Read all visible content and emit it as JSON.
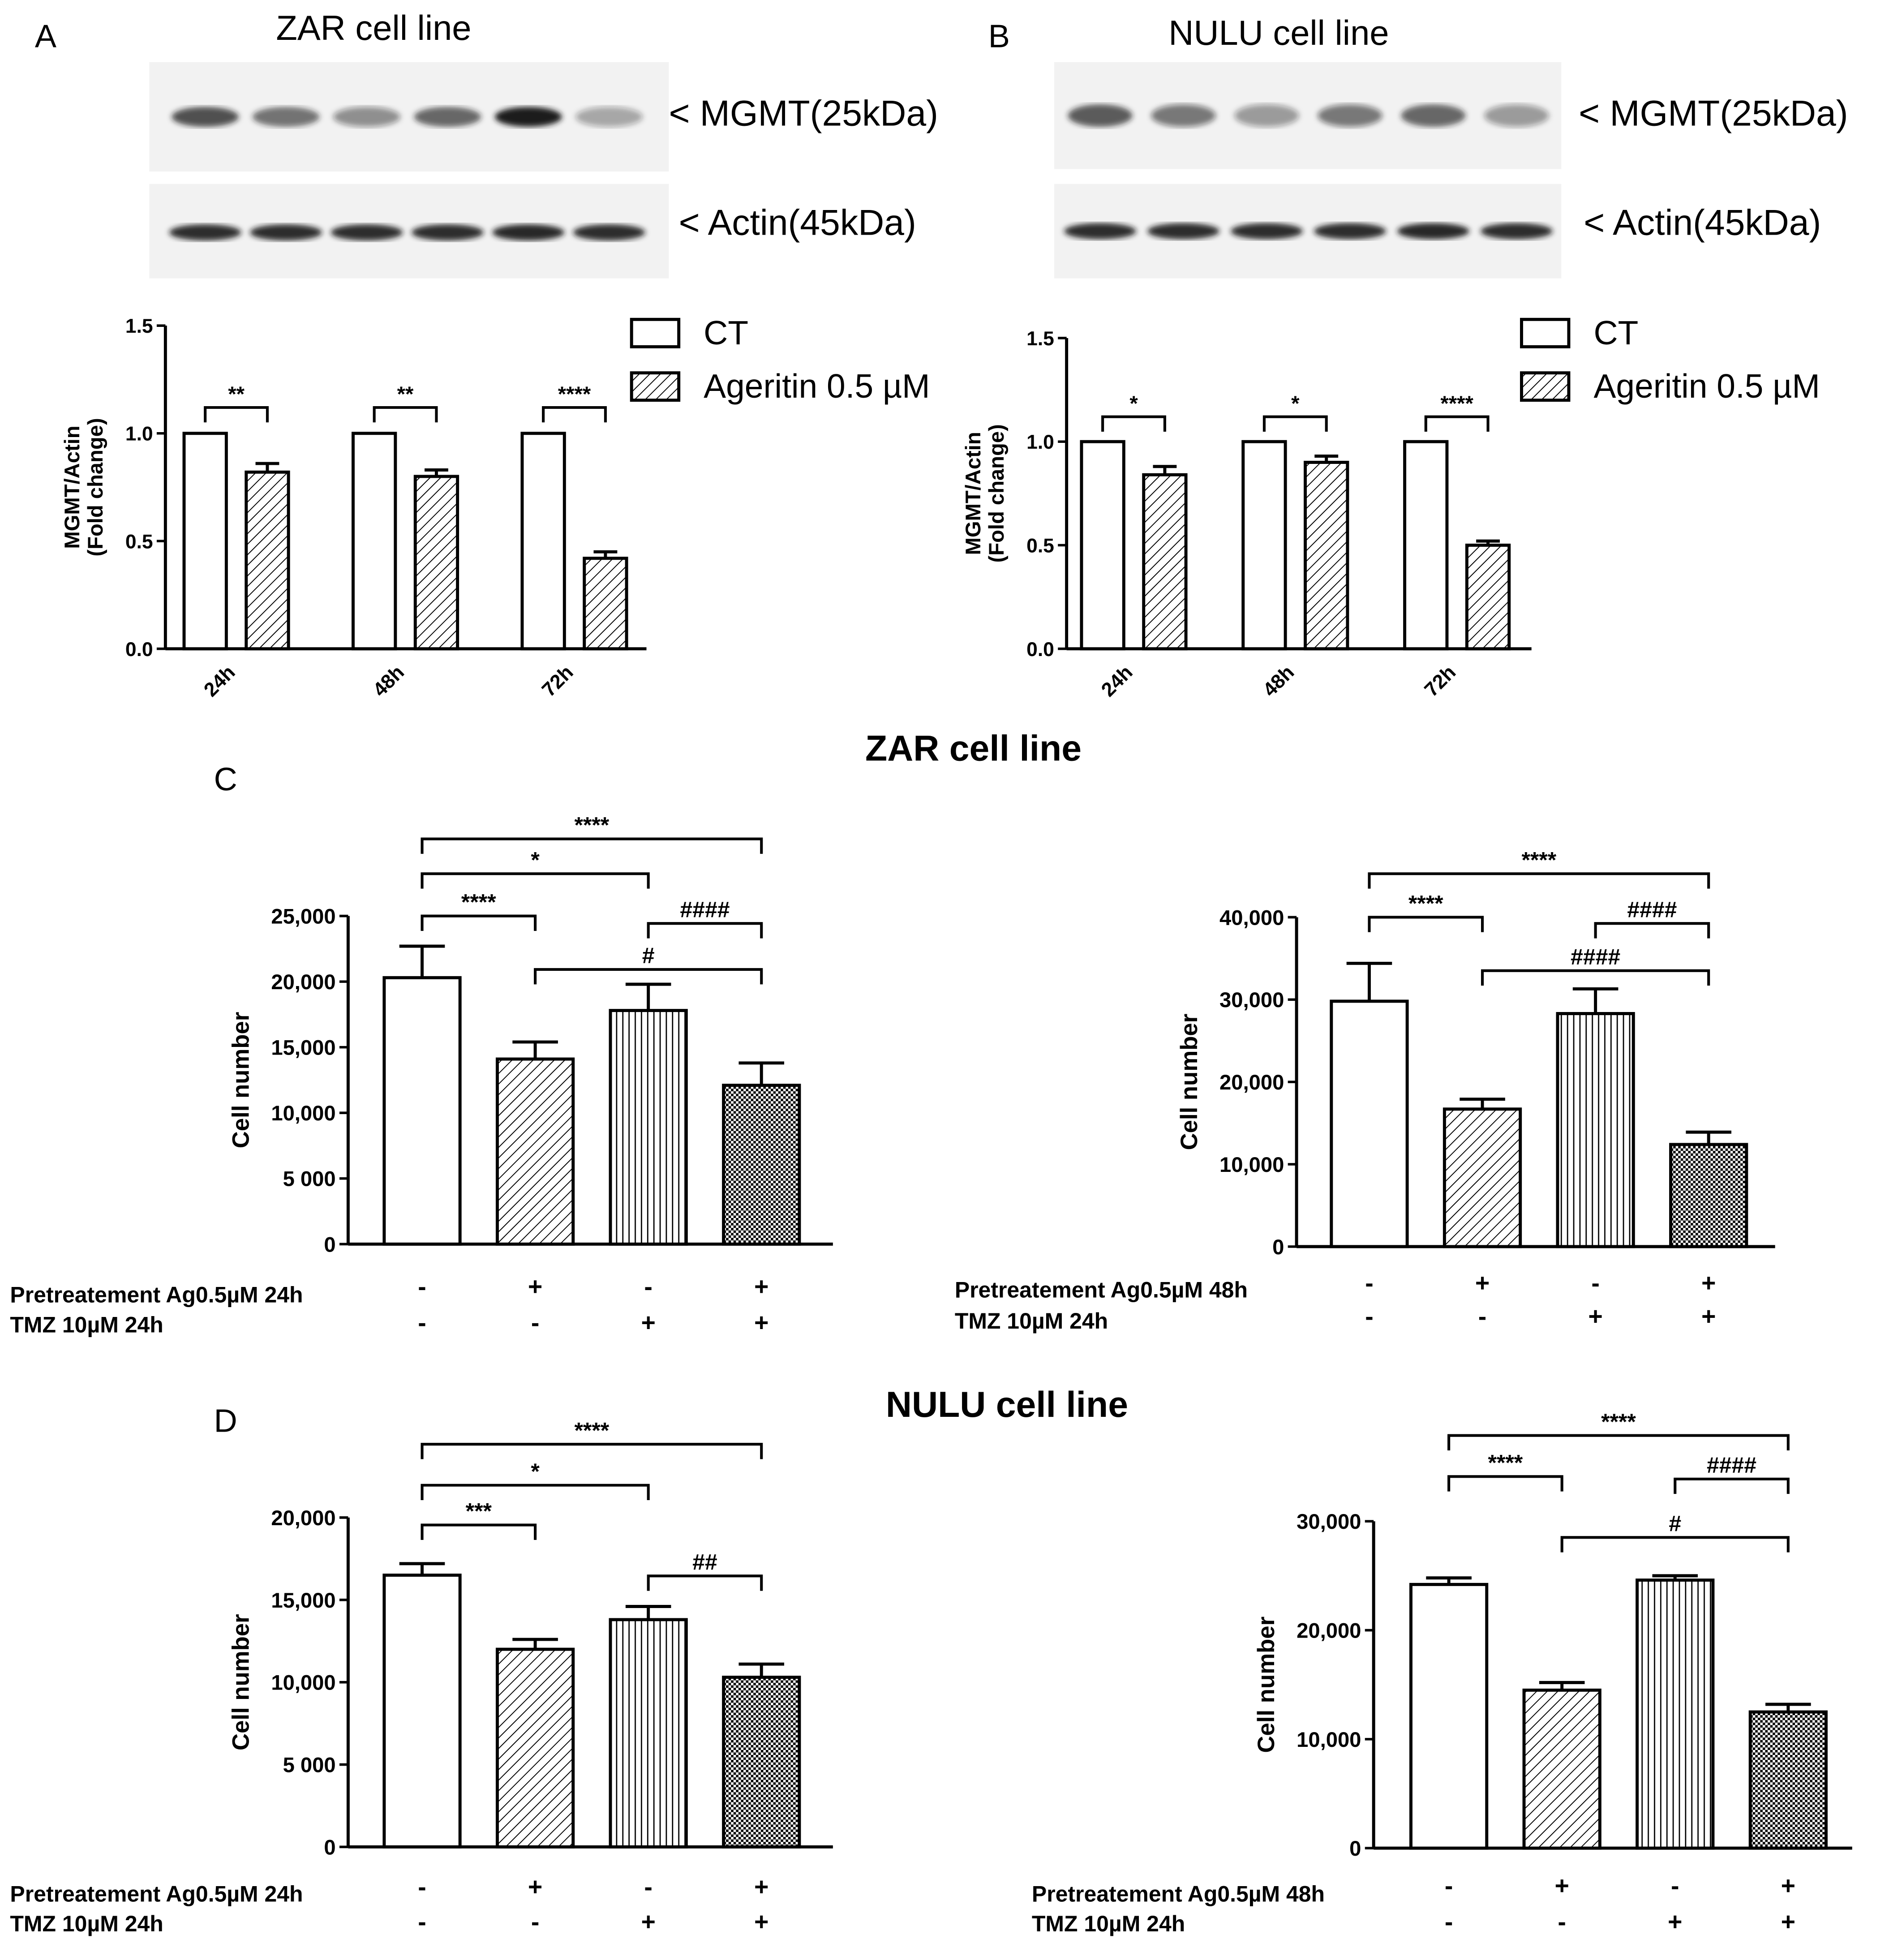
{
  "colors": {
    "ink": "#000000",
    "bar_fill": "#ffffff",
    "blot_bg": "#f2f2f2",
    "band": "#1a1a1a"
  },
  "panels": {
    "A": {
      "letter": "A",
      "title": "ZAR cell line"
    },
    "B": {
      "letter": "B",
      "title": "NULU cell line"
    },
    "C": {
      "letter": "C",
      "title": "ZAR cell line"
    },
    "D": {
      "letter": "D",
      "title": "NULU cell line"
    }
  },
  "blot": {
    "A": {
      "mgmt_label": "< MGMT(25kDa)",
      "actin_label": "< Actin(45kDa)",
      "mgmt_intensity": [
        0.75,
        0.6,
        0.45,
        0.65,
        1.0,
        0.35
      ],
      "actin_intensity": [
        0.9,
        0.9,
        0.9,
        0.9,
        0.95,
        0.9
      ]
    },
    "B": {
      "mgmt_label": "< MGMT(25kDa)",
      "actin_label": "< Actin(45kDa)",
      "mgmt_intensity": [
        0.7,
        0.55,
        0.4,
        0.55,
        0.65,
        0.4
      ],
      "actin_intensity": [
        0.9,
        0.9,
        0.9,
        0.9,
        0.95,
        0.9
      ]
    }
  },
  "legend": {
    "ct": "CT",
    "ageritin": "Ageritin 0.5 µM"
  },
  "row_labels": {
    "pre24": "Pretreatement Ag0.5µM  24h",
    "pre48": "Pretreatement Ag0.5µM  48h",
    "tmz": "TMZ 10µM  24h",
    "tmz48": "TMZ 10µM   24h"
  },
  "chart_data": [
    {
      "id": "A",
      "type": "bar",
      "ylabel": "MGMT/Actin\n(Fold change)",
      "categories": [
        "24h",
        "48h",
        "72h"
      ],
      "ylim": [
        0,
        1.5
      ],
      "yticks": [
        "0.0",
        "0.5",
        "1.0",
        "1.5"
      ],
      "ytick_values": [
        0,
        0.5,
        1,
        1.5
      ],
      "series": [
        {
          "name": "CT",
          "values": [
            1.0,
            1.0,
            1.0
          ],
          "errors": [
            0,
            0,
            0
          ]
        },
        {
          "name": "Ageritin 0.5 µM",
          "values": [
            0.82,
            0.8,
            0.42
          ],
          "errors": [
            0.04,
            0.03,
            0.03
          ]
        }
      ],
      "significance": [
        "**",
        "**",
        "****"
      ]
    },
    {
      "id": "B",
      "type": "bar",
      "ylabel": "MGMT/Actin\n(Fold change)",
      "categories": [
        "24h",
        "48h",
        "72h"
      ],
      "ylim": [
        0,
        1.5
      ],
      "yticks": [
        "0.0",
        "0.5",
        "1.0",
        "1.5"
      ],
      "ytick_values": [
        0,
        0.5,
        1,
        1.5
      ],
      "series": [
        {
          "name": "CT",
          "values": [
            1.0,
            1.0,
            1.0
          ],
          "errors": [
            0,
            0,
            0
          ]
        },
        {
          "name": "Ageritin 0.5 µM",
          "values": [
            0.84,
            0.9,
            0.5
          ],
          "errors": [
            0.04,
            0.03,
            0.02
          ]
        }
      ],
      "significance": [
        "*",
        "*",
        "****"
      ]
    },
    {
      "id": "C1",
      "type": "bar",
      "ylabel": "Cell number",
      "ylim": [
        0,
        25000
      ],
      "yticks": [
        "0",
        "5 000",
        "10,000",
        "15,000",
        "20,000",
        "25,000"
      ],
      "ytick_values": [
        0,
        5000,
        10000,
        15000,
        20000,
        25000
      ],
      "values": [
        20300,
        14100,
        17800,
        12100
      ],
      "errors": [
        2400,
        1300,
        2000,
        1700
      ],
      "pre_signs": [
        "-",
        "+",
        "-",
        "+"
      ],
      "tmz_signs": [
        "-",
        "-",
        "+",
        "+"
      ],
      "brackets": [
        {
          "a": 0,
          "b": 1,
          "label": "****"
        },
        {
          "a": 0,
          "b": 2,
          "label": "*"
        },
        {
          "a": 0,
          "b": 3,
          "label": "****"
        },
        {
          "a": 2,
          "b": 3,
          "label": "####"
        },
        {
          "a": 1,
          "b": 3,
          "label": "#"
        }
      ]
    },
    {
      "id": "C2",
      "type": "bar",
      "ylabel": "Cell number",
      "ylim": [
        0,
        40000
      ],
      "yticks": [
        "0",
        "10,000",
        "20,000",
        "30,000",
        "40,000"
      ],
      "ytick_values": [
        0,
        10000,
        20000,
        30000,
        40000
      ],
      "values": [
        29800,
        16700,
        28300,
        12400
      ],
      "errors": [
        4600,
        1200,
        3000,
        1500
      ],
      "pre_signs": [
        "-",
        "+",
        "-",
        "+"
      ],
      "tmz_signs": [
        "-",
        "-",
        "+",
        "+"
      ],
      "brackets": [
        {
          "a": 0,
          "b": 1,
          "label": "****"
        },
        {
          "a": 0,
          "b": 3,
          "label": "****"
        },
        {
          "a": 2,
          "b": 3,
          "label": "####"
        },
        {
          "a": 1,
          "b": 3,
          "label": "####"
        }
      ]
    },
    {
      "id": "D1",
      "type": "bar",
      "ylabel": "Cell number",
      "ylim": [
        0,
        20000
      ],
      "yticks": [
        "0",
        "5 000",
        "10,000",
        "15,000",
        "20,000"
      ],
      "ytick_values": [
        0,
        5000,
        10000,
        15000,
        20000
      ],
      "values": [
        16500,
        12000,
        13800,
        10300
      ],
      "errors": [
        700,
        600,
        800,
        800
      ],
      "pre_signs": [
        "-",
        "+",
        "-",
        "+"
      ],
      "tmz_signs": [
        "-",
        "-",
        "+",
        "+"
      ],
      "brackets": [
        {
          "a": 0,
          "b": 1,
          "label": "***"
        },
        {
          "a": 0,
          "b": 2,
          "label": "*"
        },
        {
          "a": 0,
          "b": 3,
          "label": "****"
        },
        {
          "a": 2,
          "b": 3,
          "label": "##"
        }
      ]
    },
    {
      "id": "D2",
      "type": "bar",
      "ylabel": "Cell number",
      "ylim": [
        0,
        30000
      ],
      "yticks": [
        "0",
        "10,000",
        "20,000",
        "30,000"
      ],
      "ytick_values": [
        0,
        10000,
        20000,
        30000
      ],
      "values": [
        24200,
        14500,
        24600,
        12500
      ],
      "errors": [
        600,
        700,
        400,
        700
      ],
      "pre_signs": [
        "-",
        "+",
        "-",
        "+"
      ],
      "tmz_signs": [
        "-",
        "-",
        "+",
        "+"
      ],
      "brackets": [
        {
          "a": 0,
          "b": 1,
          "label": "****"
        },
        {
          "a": 0,
          "b": 3,
          "label": "****"
        },
        {
          "a": 2,
          "b": 3,
          "label": "####"
        },
        {
          "a": 1,
          "b": 3,
          "label": "#"
        }
      ]
    }
  ]
}
